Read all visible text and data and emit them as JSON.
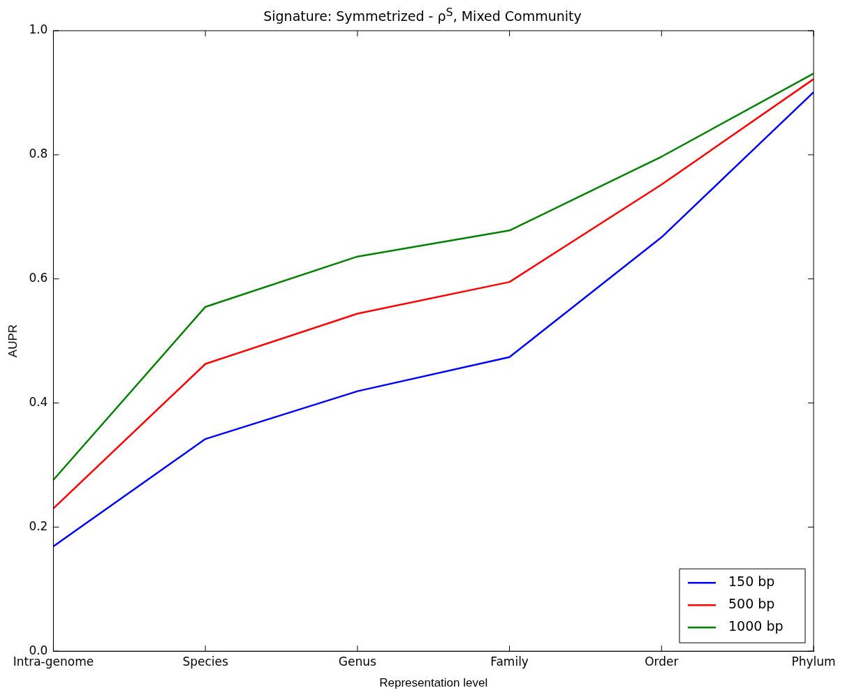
{
  "chart_data": {
    "type": "line",
    "title": "Signature: Symmetrized - ρ$^{S}$, Mixed Community",
    "xlabel": "Representation level",
    "ylabel": "AUPR",
    "categories": [
      "Intra-genome",
      "Species",
      "Genus",
      "Family",
      "Order",
      "Phylum"
    ],
    "series": [
      {
        "name": "150 bp",
        "color": "#0000ff",
        "values": [
          0.169,
          0.342,
          0.419,
          0.474,
          0.667,
          0.901
        ]
      },
      {
        "name": "500 bp",
        "color": "#ff0000",
        "values": [
          0.23,
          0.463,
          0.544,
          0.595,
          0.752,
          0.922
        ]
      },
      {
        "name": "1000 bp",
        "color": "#008000",
        "values": [
          0.276,
          0.555,
          0.636,
          0.678,
          0.797,
          0.931
        ]
      }
    ],
    "ylim": [
      0,
      1
    ],
    "yticks": [
      {
        "value": 0,
        "label": "0.0"
      },
      {
        "value": 0.2,
        "label": "0.2"
      },
      {
        "value": 0.4,
        "label": "0.4"
      },
      {
        "value": 0.6,
        "label": "0.6"
      },
      {
        "value": 0.8,
        "label": "0.8"
      },
      {
        "value": 1,
        "label": "1.0"
      }
    ],
    "grid": false,
    "legend": "bottom right",
    "marker": "none",
    "line_style": "solid"
  }
}
